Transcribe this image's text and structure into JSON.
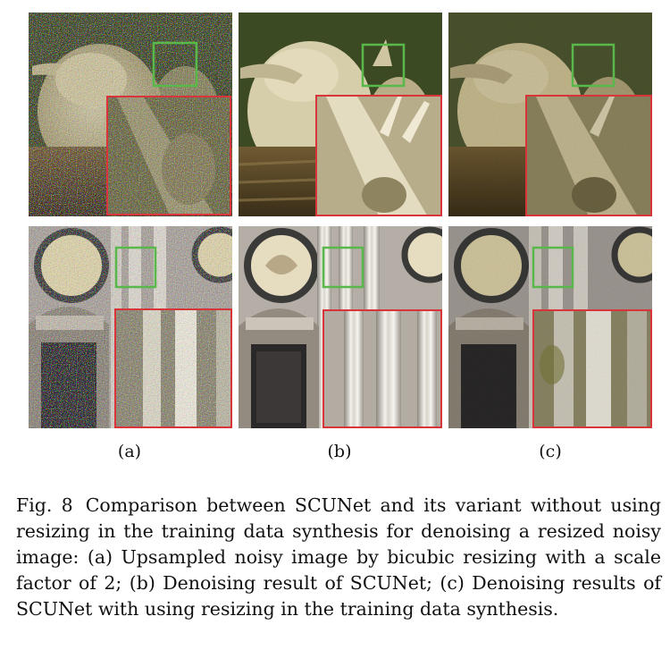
{
  "figure": {
    "sublabels": [
      "(a)",
      "(b)",
      "(c)"
    ],
    "caption_number": "Fig. 8",
    "caption_text": "Comparison between SCUNet and its variant without using resizing in the training data synthesis for denoising a resized noisy image: (a) Upsampled noisy image by bicubic resizing with a scale factor of 2; (b) Denoising result of SCUNet; (c) Denoising results of SCUNet with using resizing in the training data synthesis.",
    "colors": {
      "roi_box": "#58b84a",
      "zoom_border": "#d8343a",
      "bird_background": "#3f4a22",
      "bird_feather": "#d8cfae",
      "building_wall": "#b8b2a8",
      "building_pillar": "#e6e3dc"
    }
  }
}
